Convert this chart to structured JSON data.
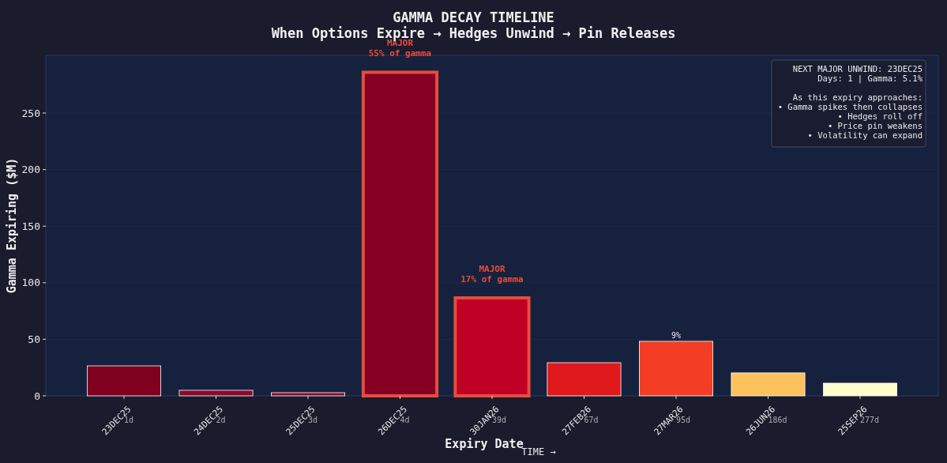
{
  "chart_data": {
    "type": "bar",
    "title": "GAMMA DECAY TIMELINE",
    "subtitle": "When Options Expire → Hedges Unwind → Pin Releases",
    "xlabel": "Expiry Date",
    "ylabel": "Gamma Expiring ($M)",
    "categories": [
      "23DEC25\n1d",
      "24DEC25\n2d",
      "25DEC25\n3d",
      "26DEC25\n4d",
      "30JAN26\n39d",
      "27FEB26\n67d",
      "27MAR26\n95d",
      "26JUN26\n186d",
      "25SEP26\n277d"
    ],
    "values": [
      26.5,
      4.9,
      2.8,
      286,
      86.6,
      29.3,
      48.2,
      20.3,
      11.2
    ],
    "colors": [
      "#800020",
      "#8a0a2c",
      "#8a0a2c",
      "#850024",
      "#c10025",
      "#e0191c",
      "#f43d25",
      "#fec15c",
      "#fffecc"
    ],
    "ylim": [
      0,
      301
    ],
    "yticks": [
      0,
      50,
      100,
      150,
      200,
      250
    ],
    "grid": "y",
    "annotations": [
      {
        "text": "MAJOR\n55% of gamma",
        "x": "26DEC25\n4d",
        "y": 286
      },
      {
        "text": "MAJOR\n17% of gamma",
        "x": "30JAN26\n39d",
        "y": 86.6
      },
      {
        "text": "9%",
        "x": "27MAR26\n95d",
        "y": 48.2
      },
      "NEXT MAJOR UNWIND: 23DEC25\nDays: 1 | Gamma: 5.1%\n\nAs this expiry approaches:\n• Gamma spikes then collapses\n• Hedges roll off\n• Price pin weakens\n• Volatility can expand",
      "TIME →"
    ]
  }
}
